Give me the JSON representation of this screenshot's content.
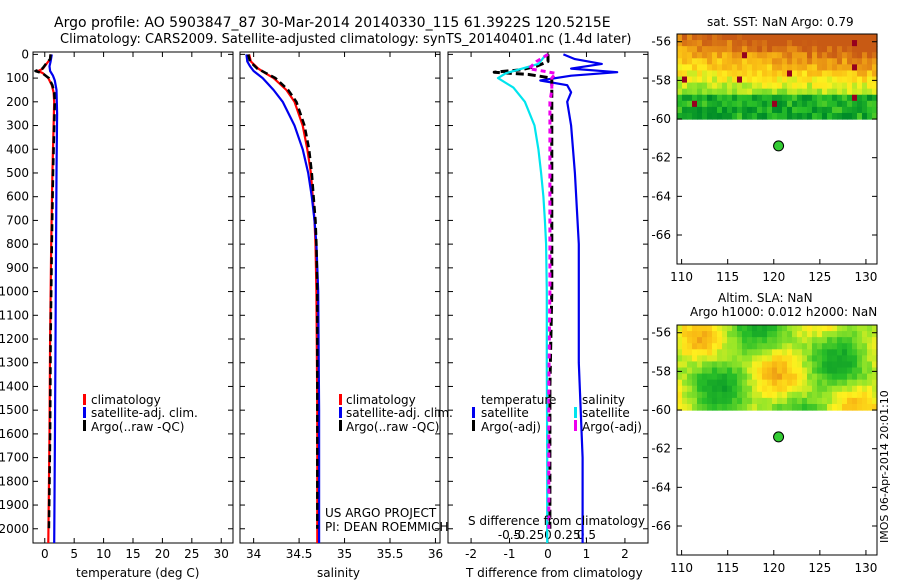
{
  "header": {
    "line1": "Argo profile: AO 5903847_87 30-Mar-2014 20140330_115 61.3922S 120.5215E",
    "line2": "Climatology: CARS2009. Satellite-adjusted climatology: synTS_20140401.nc (1.4d later)"
  },
  "depth_ticks": [
    0,
    100,
    200,
    300,
    400,
    500,
    600,
    700,
    800,
    900,
    1000,
    1100,
    1200,
    1300,
    1400,
    1500,
    1600,
    1700,
    1800,
    1900,
    2000
  ],
  "credits": {
    "line1": "US ARGO PROJECT",
    "line2": "PI: DEAN ROEMMICH"
  },
  "side_label": "IMOS 06-Apr-2014 20:01:10",
  "colors": {
    "climatology": "#ff0000",
    "satellite": "#0000ee",
    "argo": "#000000",
    "sal_satellite": "#00e5ee",
    "sal_argo": "#ee00ee"
  },
  "chart_data": [
    {
      "type": "line",
      "id": "temperature",
      "xlabel": "temperature (deg C)",
      "ylabel": "",
      "xlim": [
        -2,
        32
      ],
      "ylim": [
        2060,
        -10
      ],
      "xticks": [
        0,
        5,
        10,
        15,
        20,
        25,
        30
      ],
      "xtick_labels": [
        "0",
        "5",
        "10",
        "15",
        "20",
        "25",
        "30"
      ],
      "legend": [
        "climatology",
        "satellite-adj. clim.",
        "Argo(..raw -QC)"
      ],
      "series": [
        {
          "name": "climatology",
          "depth": [
            0,
            20,
            40,
            60,
            70,
            80,
            100,
            130,
            160,
            200,
            300,
            500,
            800,
            1200,
            1600,
            2060
          ],
          "values": [
            1.0,
            0.9,
            0.3,
            -0.3,
            -1.1,
            -0.3,
            0.6,
            1.2,
            1.5,
            1.6,
            1.5,
            1.3,
            1.1,
            0.9,
            0.8,
            0.6
          ]
        },
        {
          "name": "satellite-adj. clim.",
          "depth": [
            0,
            30,
            50,
            70,
            90,
            110,
            150,
            250,
            500,
            900,
            1300,
            1700,
            2060
          ],
          "values": [
            1.2,
            1.0,
            0.8,
            0.9,
            1.4,
            1.7,
            2.0,
            2.1,
            2.0,
            1.9,
            1.8,
            1.7,
            1.6
          ]
        },
        {
          "name": "Argo(..raw -QC)",
          "depth": [
            0,
            20,
            40,
            60,
            70,
            80,
            100,
            130,
            160,
            200,
            300,
            500,
            800,
            1200,
            1600,
            2000
          ],
          "values": [
            1.0,
            0.9,
            0.2,
            -0.4,
            -1.6,
            -0.4,
            0.7,
            1.3,
            1.6,
            1.7,
            1.6,
            1.4,
            1.2,
            1.0,
            0.9,
            0.7
          ]
        }
      ]
    },
    {
      "type": "line",
      "id": "salinity",
      "xlabel": "salinity",
      "ylabel": "",
      "xlim": [
        33.85,
        36.05
      ],
      "ylim": [
        2060,
        -10
      ],
      "xticks": [
        34,
        34.5,
        35,
        35.5,
        36
      ],
      "xtick_labels": [
        "34",
        "34.5",
        "35",
        "35.5",
        "36"
      ],
      "legend": [
        "climatology",
        "satellite-adj. clim.",
        "Argo(..raw -QC)"
      ],
      "series": [
        {
          "name": "climatology",
          "depth": [
            0,
            30,
            60,
            80,
            100,
            150,
            200,
            300,
            400,
            500,
            600,
            700,
            800,
            1000,
            1500,
            2060
          ],
          "values": [
            33.95,
            33.97,
            34.05,
            34.13,
            34.22,
            34.36,
            34.45,
            34.54,
            34.59,
            34.63,
            34.65,
            34.67,
            34.68,
            34.69,
            34.7,
            34.7
          ]
        },
        {
          "name": "satellite-adj. clim.",
          "depth": [
            0,
            30,
            50,
            70,
            100,
            150,
            200,
            300,
            400,
            500,
            600,
            700,
            800,
            1000,
            1500,
            2060
          ],
          "values": [
            33.92,
            33.93,
            33.96,
            34.0,
            34.1,
            34.22,
            34.32,
            34.45,
            34.54,
            34.6,
            34.64,
            34.67,
            34.69,
            34.71,
            34.72,
            34.72
          ]
        },
        {
          "name": "Argo(..raw -QC)",
          "depth": [
            0,
            30,
            60,
            80,
            100,
            150,
            200,
            300,
            400,
            500,
            600,
            700,
            800,
            1000,
            1500,
            2000
          ],
          "values": [
            33.94,
            33.96,
            34.04,
            34.14,
            34.24,
            34.38,
            34.47,
            34.56,
            34.61,
            34.64,
            34.66,
            34.68,
            34.69,
            34.7,
            34.7,
            34.7
          ]
        }
      ]
    },
    {
      "type": "line",
      "id": "difference",
      "xlabel": "T difference from climatology",
      "xlabel2": "S difference from climatology",
      "xlim": [
        -2.6,
        2.6
      ],
      "ylim": [
        2060,
        -10
      ],
      "xticks": [
        -2,
        -1,
        0,
        1,
        2
      ],
      "xtick_labels": [
        "-2",
        "-1",
        "0",
        "1",
        "2"
      ],
      "xticks_top": [
        -1,
        -0.5,
        0,
        0.5,
        1
      ],
      "xtick_labels_top": [
        "-0.5",
        "-0.25",
        "0",
        "0.25",
        "0.5"
      ],
      "legend": {
        "left_title": "temperature",
        "right_title": "salinity",
        "left": [
          "satellite",
          "Argo(-adj)"
        ],
        "right": [
          "satellite",
          "Argo(-adj)"
        ]
      },
      "series": [
        {
          "name": "temperature satellite",
          "depth": [
            0,
            20,
            40,
            60,
            75,
            90,
            110,
            130,
            160,
            200,
            300,
            500,
            800,
            1000,
            1300,
            1700,
            2060
          ],
          "values": [
            0.4,
            0.7,
            1.4,
            0.6,
            1.8,
            0.6,
            -0.2,
            0.5,
            0.6,
            0.5,
            0.6,
            0.7,
            0.8,
            0.8,
            0.8,
            0.9,
            0.9
          ]
        },
        {
          "name": "temperature Argo(-adj)",
          "depth": [
            0,
            30,
            50,
            65,
            75,
            85,
            100,
            150,
            200,
            400,
            700,
            1000,
            1400,
            1800,
            2000
          ],
          "values": [
            0.0,
            0.0,
            -0.3,
            -0.7,
            -1.4,
            -0.5,
            0.1,
            0.1,
            0.1,
            0.1,
            0.1,
            0.1,
            0.05,
            0.05,
            0.05
          ]
        },
        {
          "name": "salinity satellite",
          "depth": [
            0,
            40,
            80,
            100,
            140,
            200,
            300,
            400,
            500,
            600,
            700,
            800,
            1000,
            1300,
            1700,
            2060
          ],
          "values": [
            -0.05,
            -0.25,
            -1.1,
            -1.3,
            -0.9,
            -0.6,
            -0.35,
            -0.25,
            -0.18,
            -0.12,
            -0.08,
            -0.05,
            -0.03,
            -0.03,
            -0.02,
            -0.02
          ]
        },
        {
          "name": "salinity Argo(-adj)",
          "depth": [
            0,
            30,
            60,
            80,
            100,
            150,
            200,
            400,
            700,
            1000,
            1400,
            1800,
            2000
          ],
          "values": [
            0.0,
            -0.3,
            -0.5,
            0.2,
            0.1,
            0.1,
            0.05,
            0.05,
            0.05,
            0.05,
            0.02,
            0.02,
            0.02
          ]
        }
      ]
    }
  ],
  "maps": [
    {
      "title": "sat. SST: NaN Argo: 0.79",
      "title2": "",
      "kind": "sst",
      "xticks": [
        110,
        115,
        120,
        125,
        130
      ],
      "yticks": [
        -56,
        -58,
        -60,
        -62,
        -64,
        -66
      ],
      "xlim": [
        109.5,
        131.2
      ],
      "ylim": [
        -55.6,
        -67.5
      ],
      "data_south_edge": -60,
      "float_lon": 120.52,
      "float_lat": -61.39
    },
    {
      "title": "Altim. SLA: NaN",
      "title2": "Argo h1000: 0.012 h2000: NaN",
      "kind": "sla",
      "xticks": [
        110,
        115,
        120,
        125,
        130
      ],
      "yticks": [
        -56,
        -58,
        -60,
        -62,
        -64,
        -66
      ],
      "xlim": [
        109.5,
        131.2
      ],
      "ylim": [
        -55.6,
        -67.5
      ],
      "data_south_edge": -60,
      "float_lon": 120.52,
      "float_lat": -61.39
    }
  ]
}
